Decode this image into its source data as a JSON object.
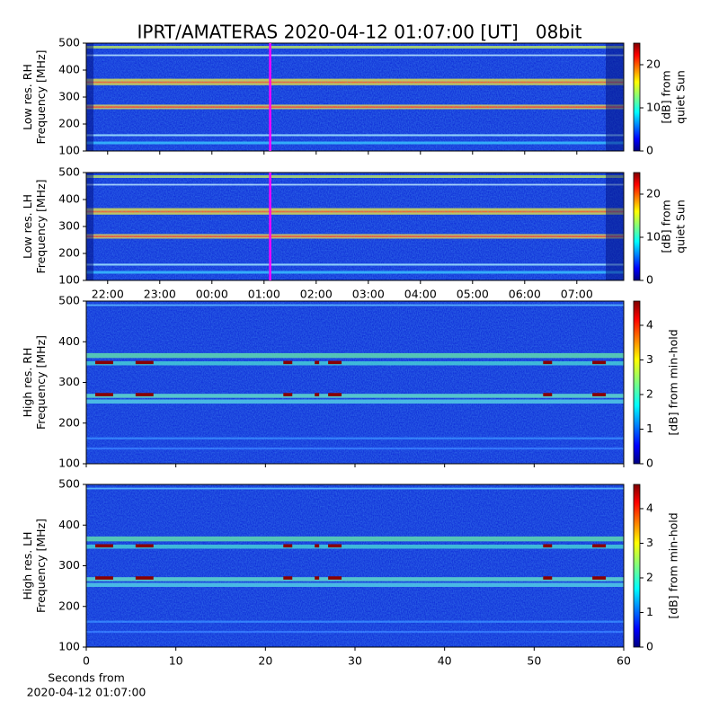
{
  "chart_data": [
    {
      "type": "heatmap",
      "title": "IPRT/AMATERAS 2020-04-12 01:07:00 [UT]   08bit",
      "ylabel": [
        "Low res. RH",
        "Frequency [MHz]"
      ],
      "ylim": [
        100,
        500
      ],
      "yticks": [
        100,
        200,
        300,
        400,
        500
      ],
      "sharex": true,
      "marker_x": 25.1167,
      "marker_color": "#ff00ff",
      "colormap": "jet",
      "colorbar": {
        "label": [
          "[dB] from",
          "quiet Sun"
        ],
        "lim": [
          0,
          25
        ],
        "ticks": [
          0,
          10,
          20
        ]
      }
    },
    {
      "type": "heatmap",
      "ylabel": [
        "Low res. LH",
        "Frequency [MHz]"
      ],
      "ylim": [
        100,
        500
      ],
      "yticks": [
        100,
        200,
        300,
        400,
        500
      ],
      "xlim": [
        21.59,
        31.9
      ],
      "xticks": [
        {
          "value": 22,
          "label": "22:00"
        },
        {
          "value": 23,
          "label": "23:00"
        },
        {
          "value": 24,
          "label": "00:00"
        },
        {
          "value": 25,
          "label": "01:00"
        },
        {
          "value": 26,
          "label": "02:00"
        },
        {
          "value": 27,
          "label": "03:00"
        },
        {
          "value": 28,
          "label": "04:00"
        },
        {
          "value": 29,
          "label": "05:00"
        },
        {
          "value": 30,
          "label": "06:00"
        },
        {
          "value": 31,
          "label": "07:00"
        }
      ],
      "marker_x": 25.1167,
      "marker_color": "#ff00ff",
      "colormap": "jet",
      "colorbar": {
        "label": [
          "[dB] from",
          "quiet Sun"
        ],
        "lim": [
          0,
          25
        ],
        "ticks": [
          0,
          10,
          20
        ]
      }
    },
    {
      "type": "heatmap",
      "ylabel": [
        "High res. RH",
        "Frequency [MHz]"
      ],
      "ylim": [
        100,
        500
      ],
      "yticks": [
        100,
        200,
        300,
        400,
        500
      ],
      "sharex": true,
      "colormap": "jet",
      "colorbar": {
        "label": [
          "[dB] from min-hold"
        ],
        "lim": [
          0,
          4.7
        ],
        "ticks": [
          0,
          1,
          2,
          3,
          4
        ]
      }
    },
    {
      "type": "heatmap",
      "ylabel": [
        "High res. LH",
        "Frequency [MHz]"
      ],
      "ylim": [
        100,
        500
      ],
      "yticks": [
        100,
        200,
        300,
        400,
        500
      ],
      "xlim": [
        0,
        60
      ],
      "xticks": [
        0,
        10,
        20,
        30,
        40,
        50,
        60
      ],
      "xlabel": [
        "Seconds from",
        "2020-04-12 01:07:00"
      ],
      "colormap": "jet",
      "colorbar": {
        "label": [
          "[dB] from min-hold"
        ],
        "lim": [
          0,
          4.7
        ],
        "ticks": [
          0,
          1,
          2,
          3,
          4
        ]
      }
    }
  ]
}
